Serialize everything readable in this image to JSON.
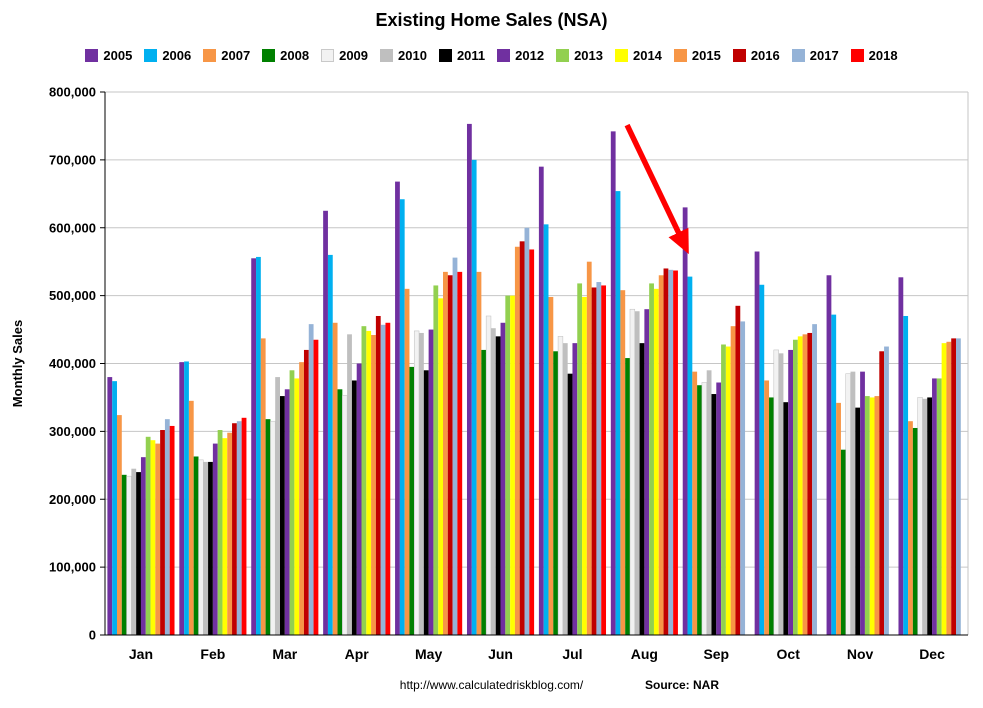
{
  "page": {
    "title": "Existing Home Sales (NSA)",
    "footer_url": "http://www.calculatedriskblog.com/",
    "footer_source": "Source: NAR"
  },
  "chart_data": {
    "type": "bar",
    "title": "Existing Home Sales (NSA)",
    "xlabel": "",
    "ylabel": "Monthly Sales",
    "ylim": [
      0,
      800000
    ],
    "ytick_interval": 100000,
    "grid": true,
    "legend_position": "top",
    "categories": [
      "Jan",
      "Feb",
      "Mar",
      "Apr",
      "May",
      "Jun",
      "Jul",
      "Aug",
      "Sep",
      "Oct",
      "Nov",
      "Dec"
    ],
    "series": [
      {
        "name": "2005",
        "color": "#7030A0",
        "values": [
          380000,
          402000,
          555000,
          625000,
          668000,
          753000,
          690000,
          742000,
          630000,
          565000,
          530000,
          527000
        ]
      },
      {
        "name": "2006",
        "color": "#00B0F0",
        "values": [
          374000,
          403000,
          557000,
          560000,
          642000,
          700000,
          605000,
          654000,
          528000,
          516000,
          472000,
          470000
        ]
      },
      {
        "name": "2007",
        "color": "#F79646",
        "values": [
          324000,
          345000,
          437000,
          460000,
          510000,
          535000,
          498000,
          508000,
          388000,
          375000,
          342000,
          315000
        ]
      },
      {
        "name": "2008",
        "color": "#008000",
        "values": [
          236000,
          263000,
          318000,
          362000,
          395000,
          420000,
          418000,
          408000,
          368000,
          350000,
          273000,
          305000
        ]
      },
      {
        "name": "2009",
        "color": "#F2F2F2",
        "values": [
          234000,
          258000,
          315000,
          353000,
          448000,
          470000,
          440000,
          480000,
          372000,
          420000,
          385000,
          350000
        ]
      },
      {
        "name": "2010",
        "color": "#BFBFBF",
        "values": [
          245000,
          255000,
          380000,
          443000,
          445000,
          452000,
          430000,
          477000,
          390000,
          415000,
          388000,
          348000
        ]
      },
      {
        "name": "2011",
        "color": "#000000",
        "values": [
          240000,
          255000,
          352000,
          375000,
          390000,
          440000,
          385000,
          430000,
          355000,
          343000,
          335000,
          350000
        ]
      },
      {
        "name": "2012",
        "color": "#7030A0",
        "values": [
          262000,
          282000,
          362000,
          400000,
          450000,
          460000,
          430000,
          480000,
          372000,
          420000,
          388000,
          378000
        ]
      },
      {
        "name": "2013",
        "color": "#92D050",
        "values": [
          292000,
          302000,
          390000,
          455000,
          515000,
          500000,
          518000,
          518000,
          428000,
          435000,
          352000,
          378000
        ]
      },
      {
        "name": "2014",
        "color": "#FFFF00",
        "values": [
          287000,
          290000,
          378000,
          448000,
          496000,
          500000,
          498000,
          510000,
          425000,
          440000,
          350000,
          430000
        ]
      },
      {
        "name": "2015",
        "color": "#F79646",
        "values": [
          282000,
          298000,
          402000,
          442000,
          535000,
          572000,
          550000,
          530000,
          455000,
          443000,
          352000,
          432000
        ]
      },
      {
        "name": "2016",
        "color": "#C00000",
        "values": [
          302000,
          312000,
          420000,
          470000,
          530000,
          580000,
          512000,
          540000,
          485000,
          445000,
          418000,
          437000
        ]
      },
      {
        "name": "2017",
        "color": "#95B3D7",
        "values": [
          318000,
          315000,
          458000,
          457000,
          556000,
          600000,
          520000,
          538000,
          462000,
          458000,
          425000,
          437000
        ]
      },
      {
        "name": "2018",
        "color": "#FF0000",
        "values": [
          308000,
          320000,
          435000,
          460000,
          535000,
          568000,
          515000,
          537000,
          null,
          null,
          null,
          null
        ]
      }
    ],
    "annotation": {
      "type": "arrow",
      "color": "#FF0000",
      "from": {
        "x_frac": 0.605,
        "y_frac": 0.061
      },
      "to": {
        "x_frac": 0.673,
        "y_frac": 0.287
      }
    }
  }
}
